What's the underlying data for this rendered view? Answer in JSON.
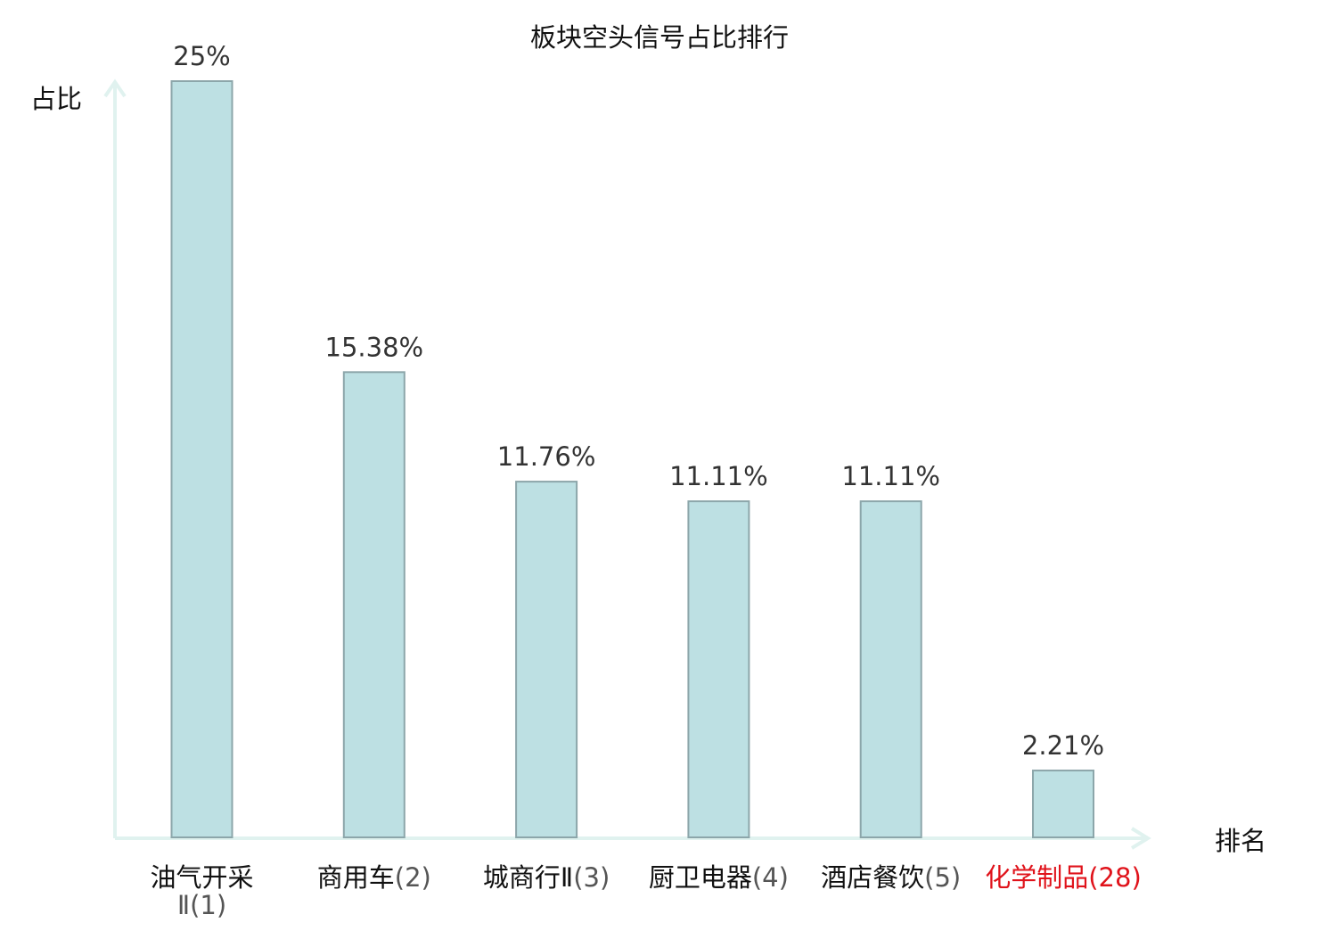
{
  "chart_data": {
    "type": "bar",
    "title": "板块空头信号占比排行",
    "ylabel": "占比",
    "xlabel": "排名",
    "ylim": [
      0,
      25
    ],
    "grid": false,
    "categories": [
      {
        "name": "油气开采Ⅱ",
        "rank": "(1)",
        "highlight": false
      },
      {
        "name": "商用车",
        "rank": "(2)",
        "highlight": false
      },
      {
        "name": "城商行Ⅱ",
        "rank": "(3)",
        "highlight": false
      },
      {
        "name": "厨卫电器",
        "rank": "(4)",
        "highlight": false
      },
      {
        "name": "酒店餐饮",
        "rank": "(5)",
        "highlight": false
      },
      {
        "name": "化学制品",
        "rank": "(28)",
        "highlight": true
      }
    ],
    "values": [
      25,
      15.38,
      11.76,
      11.11,
      11.11,
      2.21
    ],
    "value_labels": [
      "25%",
      "15.38%",
      "11.76%",
      "11.11%",
      "11.11%",
      "2.21%"
    ]
  },
  "colors": {
    "bar_fill": "#bde0e3",
    "bar_stroke": "#8ca6aa",
    "axis": "#e0f2ef",
    "text": "#111111",
    "value_text": "#333333",
    "rank_text": "#555555",
    "highlight": "#e0131b"
  }
}
